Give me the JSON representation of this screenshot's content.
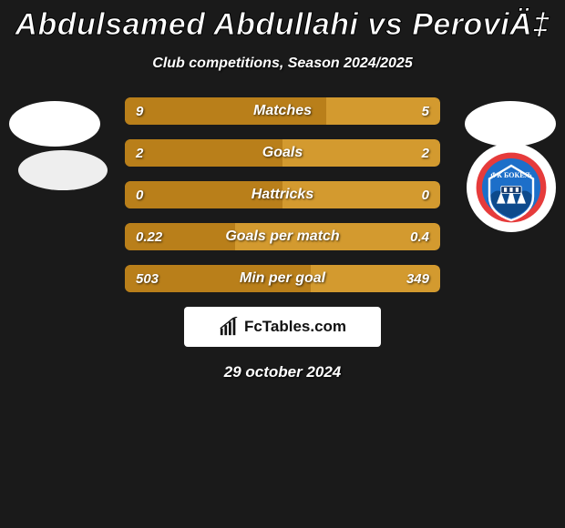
{
  "title": "Abdulsamed Abdullahi vs PeroviÄ‡",
  "subtitle": "Club competitions, Season 2024/2025",
  "date": "29 october 2024",
  "brand": "FcTables.com",
  "colors": {
    "background": "#1a1a1a",
    "row_bg": "#d39a2f",
    "row_left_segment": "#b97f1a",
    "text": "#ffffff"
  },
  "rows": [
    {
      "label": "Matches",
      "left": "9",
      "right": "5",
      "left_pct": 64
    },
    {
      "label": "Goals",
      "left": "2",
      "right": "2",
      "left_pct": 50
    },
    {
      "label": "Hattricks",
      "left": "0",
      "right": "0",
      "left_pct": 50
    },
    {
      "label": "Goals per match",
      "left": "0.22",
      "right": "0.4",
      "left_pct": 35
    },
    {
      "label": "Min per goal",
      "left": "503",
      "right": "349",
      "left_pct": 59
    }
  ],
  "badge": {
    "name": "FK Bokelj",
    "ring": "#e63b3b",
    "inner": "#1d6fc9",
    "accent": "#ffffff"
  }
}
